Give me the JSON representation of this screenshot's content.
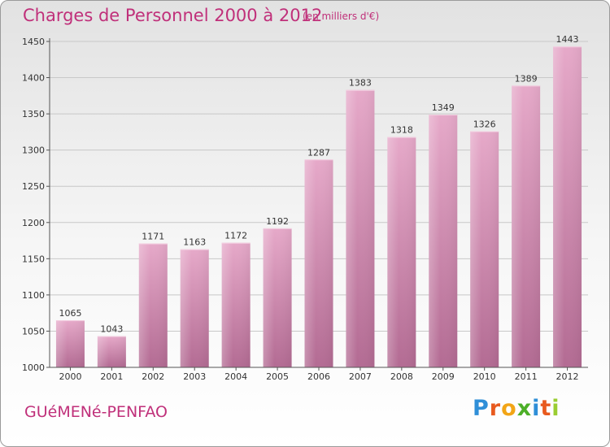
{
  "header": {
    "title": "Charges de Personnel 2000 à 2012",
    "subtitle": "(en milliers d'€)"
  },
  "footer": {
    "commune": "GUéMENé-PENFAO",
    "brand": "Proxiti",
    "brand_letters": [
      {
        "char": "P",
        "color": "#2f8fd8"
      },
      {
        "char": "r",
        "color": "#e85a1f"
      },
      {
        "char": "o",
        "color": "#f2a516"
      },
      {
        "char": "x",
        "color": "#4caf28"
      },
      {
        "char": "i",
        "color": "#2f8fd8"
      },
      {
        "char": "t",
        "color": "#e85a1f"
      },
      {
        "char": "i",
        "color": "#9acd32"
      }
    ]
  },
  "chart_data": {
    "type": "bar",
    "categories": [
      "2000",
      "2001",
      "2002",
      "2003",
      "2004",
      "2005",
      "2006",
      "2007",
      "2008",
      "2009",
      "2010",
      "2011",
      "2012"
    ],
    "values": [
      1065,
      1043,
      1171,
      1163,
      1172,
      1192,
      1287,
      1383,
      1318,
      1349,
      1326,
      1389,
      1443
    ],
    "ylim": [
      1000,
      1450
    ],
    "yticks": [
      1000,
      1050,
      1100,
      1150,
      1200,
      1250,
      1300,
      1350,
      1400,
      1450
    ],
    "grid": true,
    "bar_color": "#d88fb5"
  }
}
